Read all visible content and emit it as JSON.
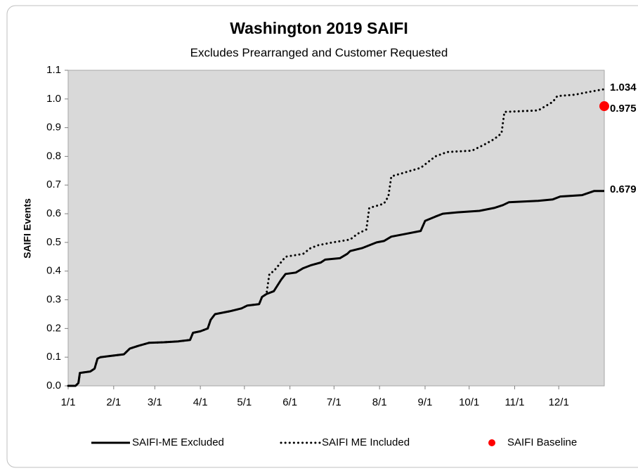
{
  "chart_data": {
    "type": "line",
    "title": "Washington 2019 SAIFI",
    "subtitle": "Excludes Prearranged and Customer Requested",
    "ylabel": "SAIFI  Events",
    "xlim": [
      0,
      365
    ],
    "xticks": [
      {
        "value": 0,
        "label": "1/1"
      },
      {
        "value": 31,
        "label": "2/1"
      },
      {
        "value": 59,
        "label": "3/1"
      },
      {
        "value": 90,
        "label": "4/1"
      },
      {
        "value": 120,
        "label": "5/1"
      },
      {
        "value": 151,
        "label": "6/1"
      },
      {
        "value": 181,
        "label": "7/1"
      },
      {
        "value": 212,
        "label": "8/1"
      },
      {
        "value": 243,
        "label": "9/1"
      },
      {
        "value": 273,
        "label": "10/1"
      },
      {
        "value": 304,
        "label": "11/1"
      },
      {
        "value": 334,
        "label": "12/1"
      }
    ],
    "ylim": [
      0,
      1.1
    ],
    "yticks": [
      {
        "value": 0,
        "label": "0.0"
      },
      0.1,
      0.2,
      0.3,
      0.4,
      0.5,
      0.6,
      0.7,
      0.8,
      0.9,
      {
        "value": 1,
        "label": "1.0"
      },
      1.1
    ],
    "grid": false,
    "legend": "bottom",
    "series": [
      {
        "name": "SAIFI-ME Excluded",
        "color": "#000000",
        "line_style": "solid",
        "x": [
          0,
          5,
          7,
          8,
          15,
          18,
          20,
          22,
          30,
          38,
          40,
          42,
          48,
          55,
          65,
          75,
          83,
          85,
          90,
          95,
          97,
          100,
          110,
          118,
          122,
          130,
          132,
          135,
          140,
          145,
          148,
          155,
          160,
          165,
          172,
          175,
          185,
          190,
          192,
          200,
          210,
          215,
          220,
          230,
          240,
          243,
          250,
          255,
          265,
          280,
          290,
          296,
          300,
          320,
          330,
          335,
          350,
          358,
          365
        ],
        "values": [
          0,
          0,
          0.01,
          0.045,
          0.05,
          0.06,
          0.095,
          0.1,
          0.105,
          0.11,
          0.12,
          0.13,
          0.14,
          0.15,
          0.152,
          0.155,
          0.16,
          0.185,
          0.19,
          0.2,
          0.23,
          0.25,
          0.26,
          0.27,
          0.28,
          0.285,
          0.31,
          0.32,
          0.33,
          0.37,
          0.39,
          0.395,
          0.41,
          0.42,
          0.43,
          0.44,
          0.445,
          0.46,
          0.47,
          0.48,
          0.5,
          0.505,
          0.52,
          0.53,
          0.54,
          0.575,
          0.59,
          0.6,
          0.605,
          0.61,
          0.62,
          0.63,
          0.64,
          0.645,
          0.65,
          0.66,
          0.665,
          0.679,
          0.679
        ]
      },
      {
        "name": "SAIFI ME Included",
        "color": "#000000",
        "line_style": "dotted",
        "x": [
          0,
          5,
          7,
          8,
          15,
          18,
          20,
          22,
          30,
          38,
          40,
          42,
          48,
          55,
          65,
          75,
          83,
          85,
          90,
          95,
          97,
          100,
          110,
          118,
          122,
          130,
          132,
          135,
          137,
          140,
          148,
          160,
          165,
          170,
          180,
          192,
          197,
          203,
          205,
          215,
          218,
          220,
          230,
          240,
          245,
          250,
          258,
          275,
          283,
          290,
          295,
          297,
          320,
          330,
          333,
          345,
          355,
          365
        ],
        "values": [
          0,
          0,
          0.01,
          0.045,
          0.05,
          0.06,
          0.095,
          0.1,
          0.105,
          0.11,
          0.12,
          0.13,
          0.14,
          0.15,
          0.152,
          0.155,
          0.16,
          0.185,
          0.19,
          0.2,
          0.23,
          0.25,
          0.26,
          0.27,
          0.28,
          0.285,
          0.31,
          0.32,
          0.39,
          0.4,
          0.45,
          0.46,
          0.48,
          0.49,
          0.5,
          0.51,
          0.53,
          0.545,
          0.62,
          0.635,
          0.66,
          0.73,
          0.745,
          0.76,
          0.78,
          0.8,
          0.815,
          0.82,
          0.84,
          0.86,
          0.88,
          0.955,
          0.96,
          0.99,
          1.01,
          1.015,
          1.025,
          1.034
        ]
      },
      {
        "name": "SAIFI Baseline",
        "color": "#ff0000",
        "line_style": "marker",
        "x": [
          365
        ],
        "values": [
          0.975
        ]
      }
    ]
  }
}
